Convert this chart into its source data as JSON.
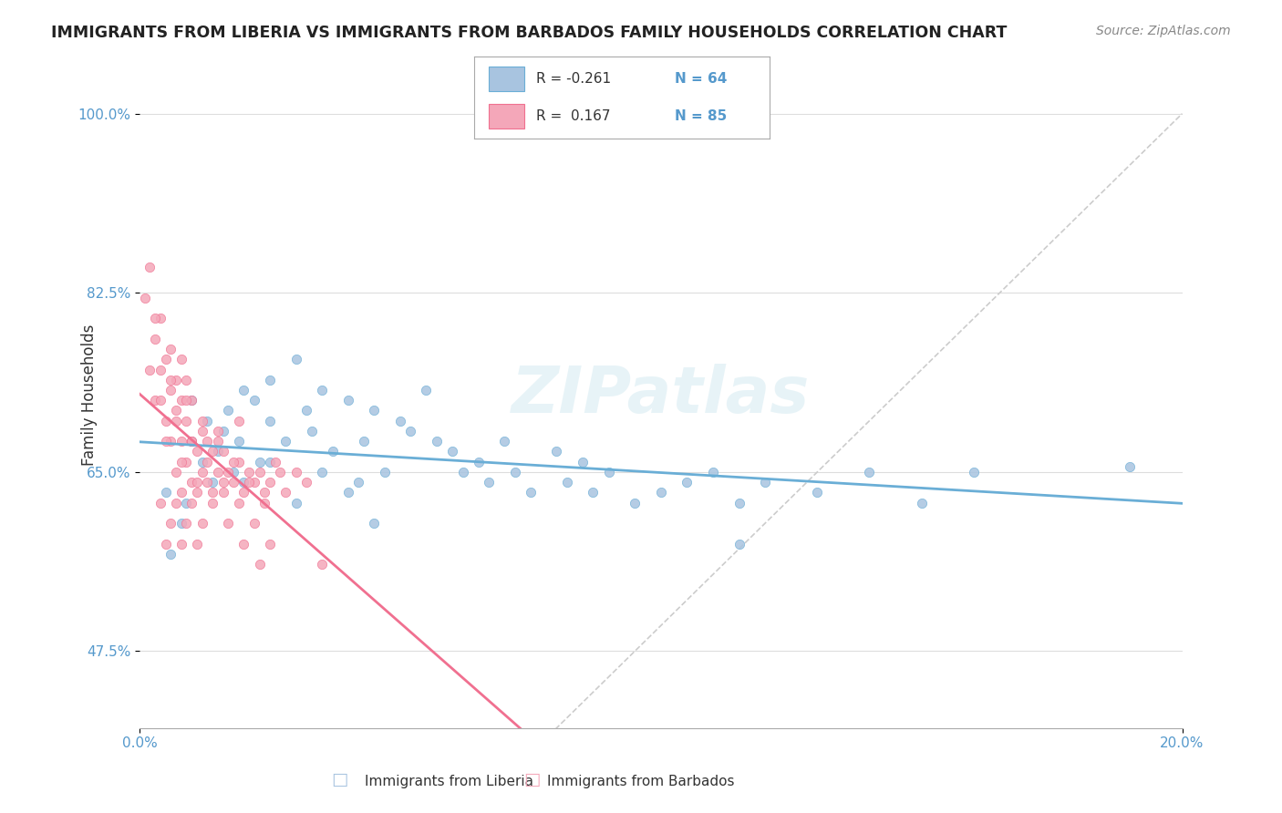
{
  "title": "IMMIGRANTS FROM LIBERIA VS IMMIGRANTS FROM BARBADOS FAMILY HOUSEHOLDS CORRELATION CHART",
  "source": "Source: ZipAtlas.com",
  "xlabel": "",
  "ylabel": "Family Households",
  "xlim": [
    0.0,
    0.2
  ],
  "ylim": [
    0.4,
    1.05
  ],
  "xtick_labels": [
    "0.0%",
    "20.0%"
  ],
  "ytick_labels": [
    "47.5%",
    "65.0%",
    "82.5%",
    "100.0%"
  ],
  "ytick_values": [
    0.475,
    0.65,
    0.825,
    1.0
  ],
  "legend_r1": "R = -0.261",
  "legend_n1": "N = 64",
  "legend_r2": "R =  0.167",
  "legend_n2": "N = 85",
  "color_liberia": "#a8c4e0",
  "color_barbados": "#f4a7b9",
  "line_color_liberia": "#6aaed6",
  "line_color_barbados": "#f07090",
  "diagonal_color": "#cccccc",
  "watermark": "ZIPatlas",
  "background_color": "#ffffff",
  "liberia_x": [
    0.005,
    0.01,
    0.01,
    0.012,
    0.013,
    0.014,
    0.015,
    0.016,
    0.017,
    0.018,
    0.019,
    0.02,
    0.022,
    0.023,
    0.025,
    0.025,
    0.028,
    0.03,
    0.032,
    0.033,
    0.035,
    0.037,
    0.04,
    0.042,
    0.043,
    0.045,
    0.047,
    0.05,
    0.052,
    0.055,
    0.057,
    0.06,
    0.062,
    0.065,
    0.067,
    0.07,
    0.072,
    0.075,
    0.08,
    0.082,
    0.085,
    0.087,
    0.09,
    0.095,
    0.1,
    0.105,
    0.11,
    0.115,
    0.12,
    0.13,
    0.14,
    0.15,
    0.16,
    0.115,
    0.19,
    0.006,
    0.008,
    0.009,
    0.02,
    0.025,
    0.03,
    0.035,
    0.04,
    0.045
  ],
  "liberia_y": [
    0.63,
    0.68,
    0.72,
    0.66,
    0.7,
    0.64,
    0.67,
    0.69,
    0.71,
    0.65,
    0.68,
    0.73,
    0.72,
    0.66,
    0.74,
    0.7,
    0.68,
    0.76,
    0.71,
    0.69,
    0.73,
    0.67,
    0.72,
    0.64,
    0.68,
    0.71,
    0.65,
    0.7,
    0.69,
    0.73,
    0.68,
    0.67,
    0.65,
    0.66,
    0.64,
    0.68,
    0.65,
    0.63,
    0.67,
    0.64,
    0.66,
    0.63,
    0.65,
    0.62,
    0.63,
    0.64,
    0.65,
    0.62,
    0.64,
    0.63,
    0.65,
    0.62,
    0.65,
    0.58,
    0.655,
    0.57,
    0.6,
    0.62,
    0.64,
    0.66,
    0.62,
    0.65,
    0.63,
    0.6
  ],
  "barbados_x": [
    0.001,
    0.002,
    0.003,
    0.003,
    0.004,
    0.004,
    0.005,
    0.005,
    0.006,
    0.006,
    0.006,
    0.007,
    0.007,
    0.007,
    0.008,
    0.008,
    0.008,
    0.008,
    0.009,
    0.009,
    0.009,
    0.01,
    0.01,
    0.01,
    0.011,
    0.011,
    0.012,
    0.012,
    0.013,
    0.013,
    0.014,
    0.014,
    0.015,
    0.015,
    0.016,
    0.016,
    0.017,
    0.018,
    0.019,
    0.019,
    0.02,
    0.021,
    0.022,
    0.023,
    0.024,
    0.025,
    0.026,
    0.027,
    0.028,
    0.03,
    0.032,
    0.035,
    0.004,
    0.005,
    0.006,
    0.007,
    0.008,
    0.009,
    0.01,
    0.011,
    0.012,
    0.002,
    0.003,
    0.004,
    0.005,
    0.006,
    0.007,
    0.008,
    0.009,
    0.01,
    0.011,
    0.012,
    0.013,
    0.014,
    0.015,
    0.016,
    0.017,
    0.018,
    0.019,
    0.02,
    0.021,
    0.022,
    0.023,
    0.024,
    0.025
  ],
  "barbados_y": [
    0.82,
    0.85,
    0.72,
    0.78,
    0.75,
    0.8,
    0.7,
    0.76,
    0.68,
    0.73,
    0.77,
    0.65,
    0.71,
    0.74,
    0.63,
    0.68,
    0.72,
    0.76,
    0.66,
    0.7,
    0.74,
    0.64,
    0.68,
    0.72,
    0.63,
    0.67,
    0.65,
    0.69,
    0.64,
    0.68,
    0.63,
    0.67,
    0.65,
    0.69,
    0.63,
    0.67,
    0.65,
    0.64,
    0.66,
    0.7,
    0.63,
    0.65,
    0.64,
    0.65,
    0.63,
    0.64,
    0.66,
    0.65,
    0.63,
    0.65,
    0.64,
    0.56,
    0.62,
    0.58,
    0.6,
    0.62,
    0.58,
    0.6,
    0.62,
    0.58,
    0.6,
    0.75,
    0.8,
    0.72,
    0.68,
    0.74,
    0.7,
    0.66,
    0.72,
    0.68,
    0.64,
    0.7,
    0.66,
    0.62,
    0.68,
    0.64,
    0.6,
    0.66,
    0.62,
    0.58,
    0.64,
    0.6,
    0.56,
    0.62,
    0.58
  ]
}
